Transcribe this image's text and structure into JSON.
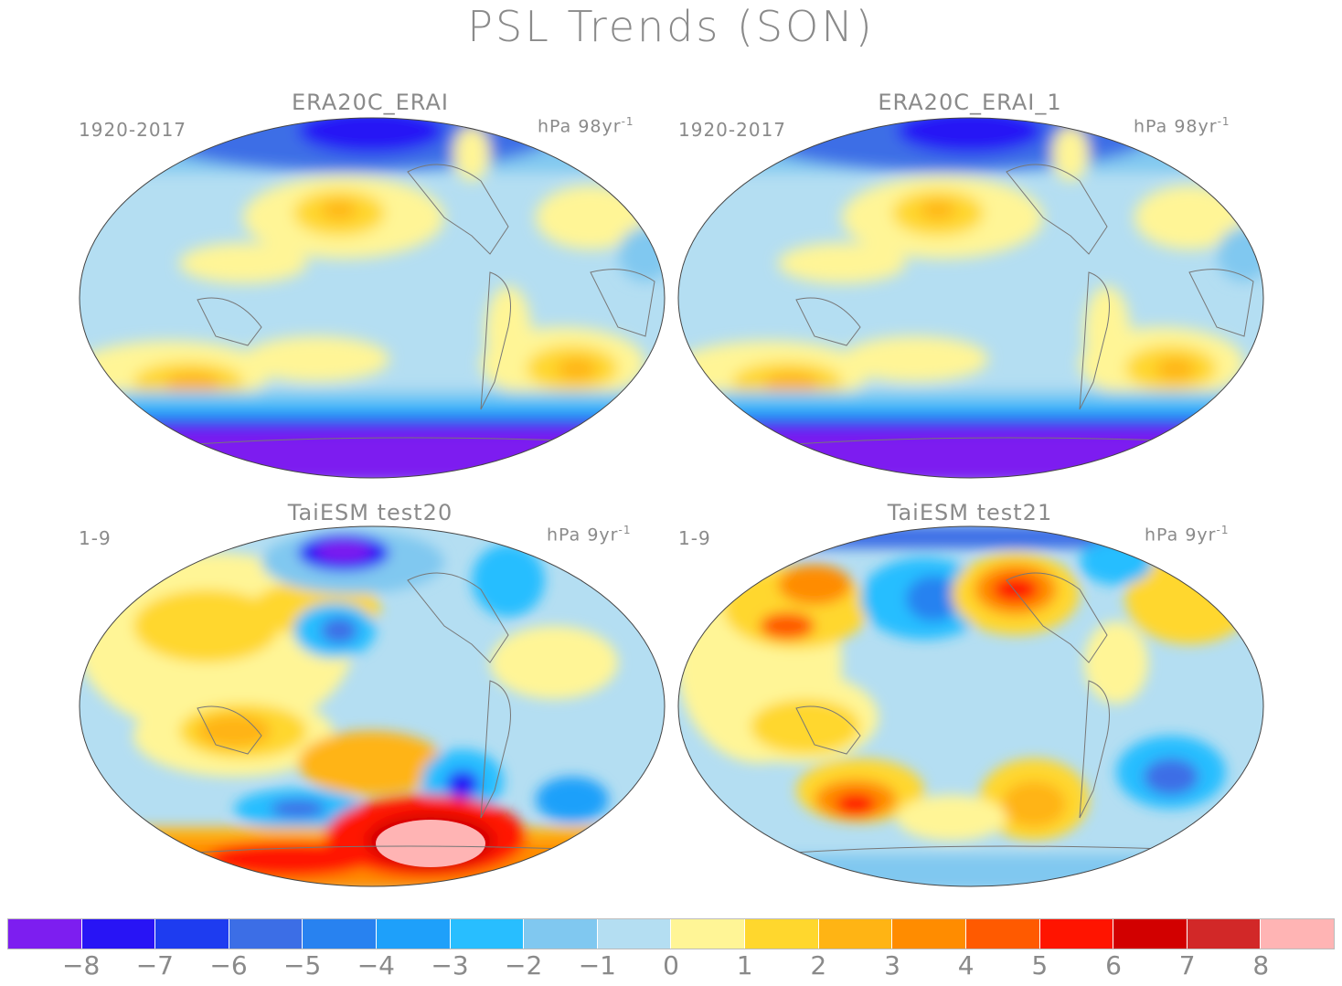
{
  "title": "PSL Trends (SON)",
  "panels": [
    {
      "title": "ERA20C_ERAI",
      "period": "1920-2017",
      "units_prefix": "hPa 98yr",
      "units_sup": "-1"
    },
    {
      "title": "ERA20C_ERAI_1",
      "period": "1920-2017",
      "units_prefix": "hPa 98yr",
      "units_sup": "-1"
    },
    {
      "title": "TaiESM test20",
      "period": "1-9",
      "units_prefix": "hPa 9yr",
      "units_sup": "-1"
    },
    {
      "title": "TaiESM test21",
      "period": "1-9",
      "units_prefix": "hPa 9yr",
      "units_sup": "-1"
    }
  ],
  "colorbar": {
    "colors": [
      "#7d1ef0",
      "#2814f5",
      "#1e3cf0",
      "#3c6ee6",
      "#2882f0",
      "#1ea0fa",
      "#28beff",
      "#80c8f0",
      "#b4def2",
      "#fff596",
      "#ffd72d",
      "#ffb414",
      "#ff8c00",
      "#ff5a00",
      "#ff1400",
      "#d20000",
      "#d22828",
      "#ffb4b4"
    ],
    "labels": [
      "-8",
      "-7",
      "-6",
      "-5",
      "-4",
      "-3",
      "-2",
      "-1",
      "0",
      "1",
      "2",
      "3",
      "4",
      "5",
      "6",
      "7",
      "8"
    ]
  }
}
